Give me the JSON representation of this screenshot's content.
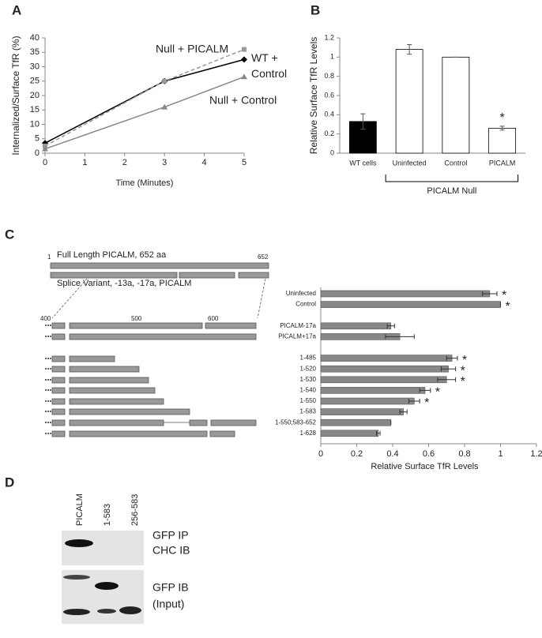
{
  "panels": [
    "A",
    "B",
    "C",
    "D"
  ],
  "chart_data": [
    {
      "type": "line",
      "x_label": "Time (Minutes)",
      "y_label": "Internalized/Surface TfR (%)",
      "x": [
        0,
        3,
        5
      ],
      "xlim": [
        0,
        5
      ],
      "xticks": [
        0,
        1,
        2,
        3,
        4,
        5
      ],
      "ylim": [
        0,
        40
      ],
      "yticks": [
        0,
        5,
        10,
        15,
        20,
        25,
        30,
        35,
        40
      ],
      "series": [
        {
          "name": "WT + Control",
          "color": "#000000",
          "dashed": false,
          "marker": "diamond",
          "values": [
            3.5,
            25,
            32.5
          ]
        },
        {
          "name": "Null + PICALM",
          "color": "#999999",
          "dashed": true,
          "marker": "square",
          "values": [
            2.5,
            25,
            36
          ]
        },
        {
          "name": "Null +  Control",
          "color": "#888888",
          "dashed": false,
          "marker": "triangle",
          "values": [
            1.5,
            16,
            26.5
          ]
        }
      ]
    },
    {
      "type": "bar",
      "y_label": "Relative Surface TfR Levels",
      "categories": [
        "WT cells",
        "Uninfected",
        "Control",
        "PICALM"
      ],
      "values": [
        0.33,
        1.08,
        1.0,
        0.26
      ],
      "errors": [
        0.08,
        0.05,
        0,
        0.02
      ],
      "colors": [
        "#000000",
        "#ffffff",
        "#ffffff",
        "#ffffff"
      ],
      "ylim": [
        0,
        1.2
      ],
      "yticks": [
        0,
        0.2,
        0.4,
        0.6,
        0.8,
        1,
        1.2
      ],
      "group_label": "PICALM Null",
      "marker": "*",
      "significant": [
        false,
        false,
        false,
        true
      ]
    },
    {
      "type": "barh",
      "x_label": "Relative Surface TfR Levels",
      "categories": [
        "Uninfected",
        "Control",
        null,
        "PICALM-17a",
        "PICALM+17a",
        null,
        "1-485",
        "1-520",
        "1-530",
        "1-540",
        "1-550",
        "1-583",
        "1-550;583-652",
        "1-628"
      ],
      "values": [
        0.94,
        1.0,
        null,
        0.39,
        0.44,
        null,
        0.73,
        0.71,
        0.7,
        0.58,
        0.52,
        0.46,
        0.39,
        0.32
      ],
      "errors": [
        0.04,
        0,
        null,
        0.02,
        0.08,
        null,
        0.03,
        0.04,
        0.05,
        0.03,
        0.03,
        0.02,
        0,
        0.01
      ],
      "color": "#888888",
      "xlim": [
        0,
        1.2
      ],
      "xticks": [
        0,
        0.2,
        0.4,
        0.6,
        0.8,
        1,
        1.2
      ],
      "marker": "*",
      "significant": [
        true,
        true,
        null,
        false,
        false,
        null,
        true,
        true,
        true,
        true,
        true,
        false,
        false,
        false
      ]
    }
  ],
  "diagram": {
    "full_length": "Full Length PICALM, 652 aa",
    "start": "1",
    "end": "652",
    "splice": "Splice Variant, -13a, -17a, PICALM",
    "scale": [
      "400",
      "500",
      "600"
    ]
  },
  "blot": {
    "lanes": [
      "PICALM",
      "1-583",
      "256-583"
    ],
    "top": [
      "GFP IP",
      "CHC IB"
    ],
    "bottom": [
      "GFP IB",
      "(Input)"
    ]
  }
}
